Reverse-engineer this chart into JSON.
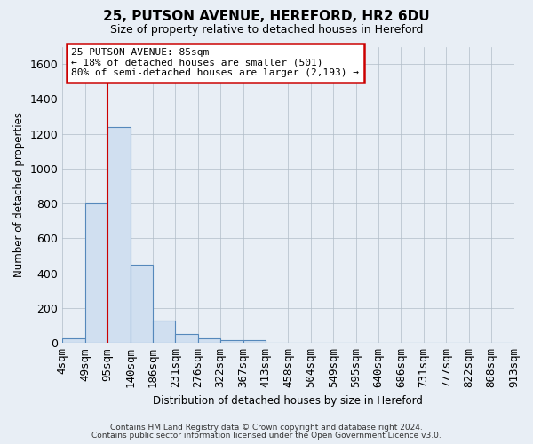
{
  "title": "25, PUTSON AVENUE, HEREFORD, HR2 6DU",
  "subtitle": "Size of property relative to detached houses in Hereford",
  "xlabel": "Distribution of detached houses by size in Hereford",
  "ylabel": "Number of detached properties",
  "bar_values": [
    25,
    800,
    1240,
    450,
    130,
    55,
    25,
    15,
    15,
    0,
    0,
    0,
    0,
    0,
    0,
    0,
    0,
    0,
    0,
    0
  ],
  "bar_color": "#d0dff0",
  "bar_edge_color": "#5588bb",
  "categories": [
    "4sqm",
    "49sqm",
    "95sqm",
    "140sqm",
    "186sqm",
    "231sqm",
    "276sqm",
    "322sqm",
    "367sqm",
    "413sqm",
    "458sqm",
    "504sqm",
    "549sqm",
    "595sqm",
    "640sqm",
    "686sqm",
    "731sqm",
    "777sqm",
    "822sqm",
    "868sqm",
    "913sqm"
  ],
  "ylim": [
    0,
    1700
  ],
  "yticks": [
    0,
    200,
    400,
    600,
    800,
    1000,
    1200,
    1400,
    1600
  ],
  "vline_x": 2,
  "vline_color": "#cc0000",
  "annotation_line1": "25 PUTSON AVENUE: 85sqm",
  "annotation_line2": "← 18% of detached houses are smaller (501)",
  "annotation_line3": "80% of semi-detached houses are larger (2,193) →",
  "annotation_box_color": "#cc0000",
  "footer1": "Contains HM Land Registry data © Crown copyright and database right 2024.",
  "footer2": "Contains public sector information licensed under the Open Government Licence v3.0.",
  "fig_bg_color": "#e8eef5",
  "plot_bg_color": "#e8eef5",
  "grid_color": "#b0bcc8"
}
